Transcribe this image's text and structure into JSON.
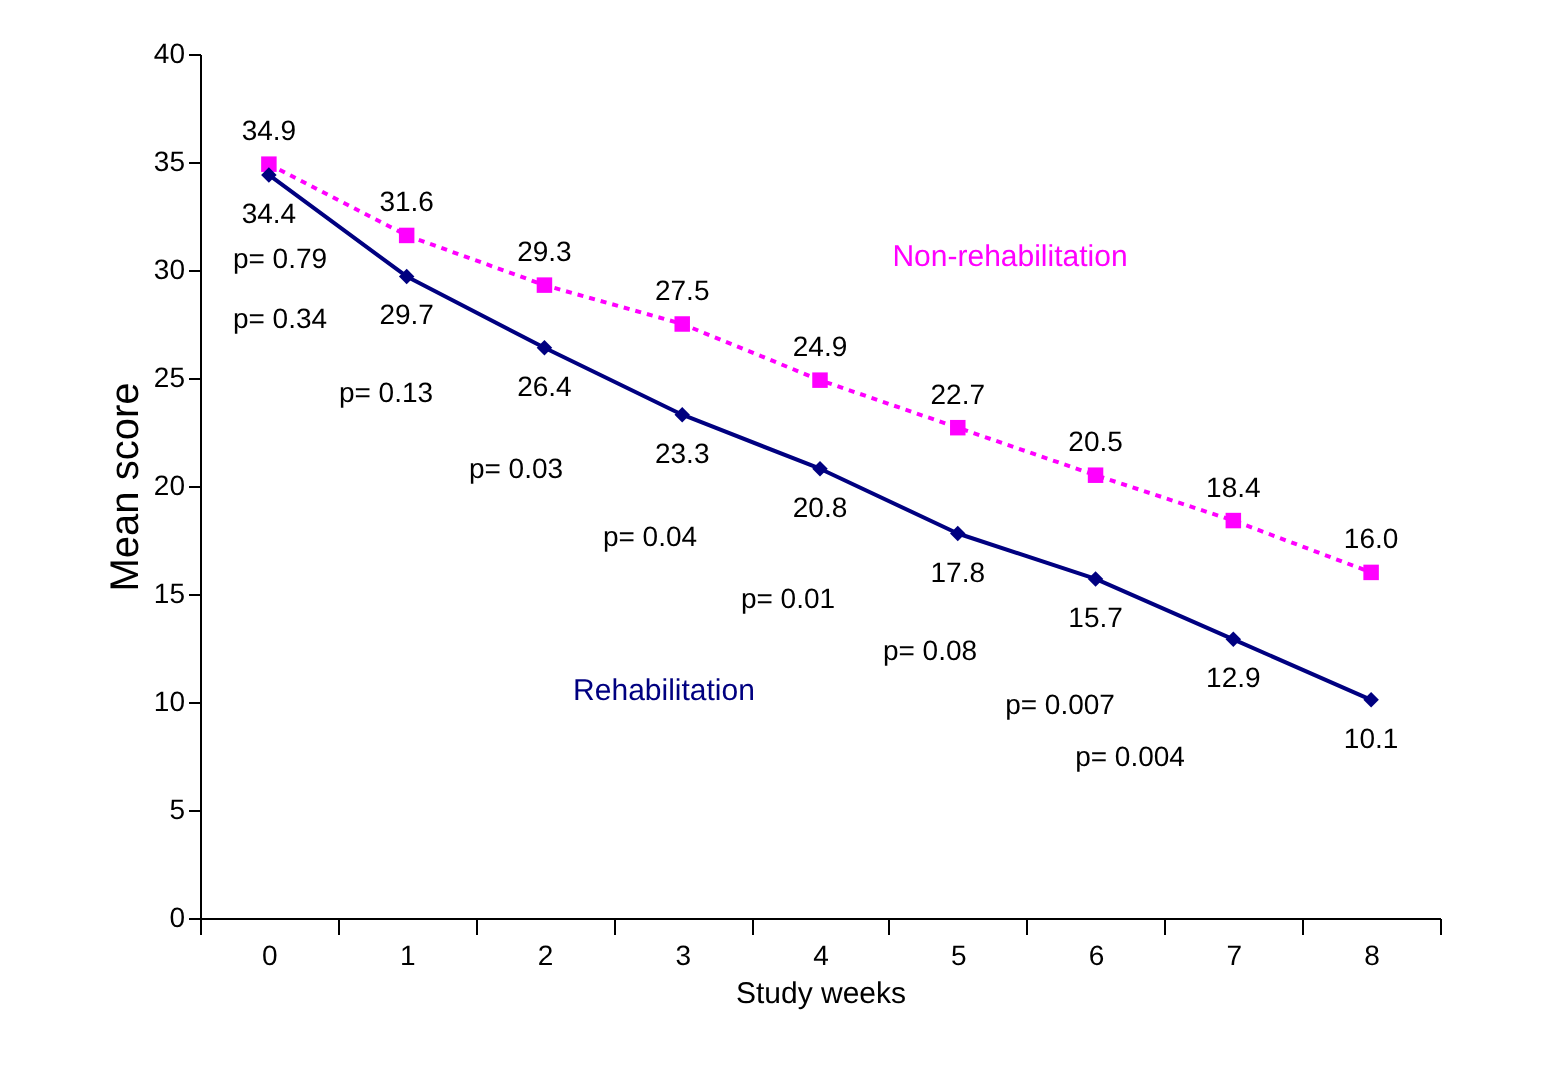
{
  "chart_data": {
    "type": "line",
    "xlabel": "Study weeks",
    "ylabel": "Mean score",
    "categories": [
      "0",
      "1",
      "2",
      "3",
      "4",
      "5",
      "6",
      "7",
      "8"
    ],
    "series": [
      {
        "name": "Non-rehabilitation",
        "color": "#ff00ff",
        "marker": "square",
        "line_style": "dotted",
        "values": [
          34.9,
          31.6,
          29.3,
          27.5,
          24.9,
          22.7,
          20.5,
          18.4,
          16.0
        ],
        "value_labels": [
          "34.9",
          "31.6",
          "29.3",
          "27.5",
          "24.9",
          "22.7",
          "20.5",
          "18.4",
          "16.0"
        ]
      },
      {
        "name": "Rehabilitation",
        "color": "#000080",
        "marker": "diamond",
        "line_style": "solid",
        "values": [
          34.4,
          29.7,
          26.4,
          23.3,
          20.8,
          17.8,
          15.7,
          12.9,
          10.1
        ],
        "value_labels": [
          "34.4",
          "29.7",
          "26.4",
          "23.3",
          "20.8",
          "17.8",
          "15.7",
          "12.9",
          "10.1"
        ]
      }
    ],
    "ylim": [
      0,
      40
    ],
    "yticks": [
      0,
      5,
      10,
      15,
      20,
      25,
      30,
      35,
      40
    ],
    "grid": false,
    "legend": false,
    "annotations": [
      "p= 0.79",
      "p= 0.34",
      "p= 0.13",
      "p= 0.03",
      "p= 0.04",
      "p= 0.01",
      "p= 0.08",
      "p= 0.007",
      "p= 0.004"
    ]
  }
}
